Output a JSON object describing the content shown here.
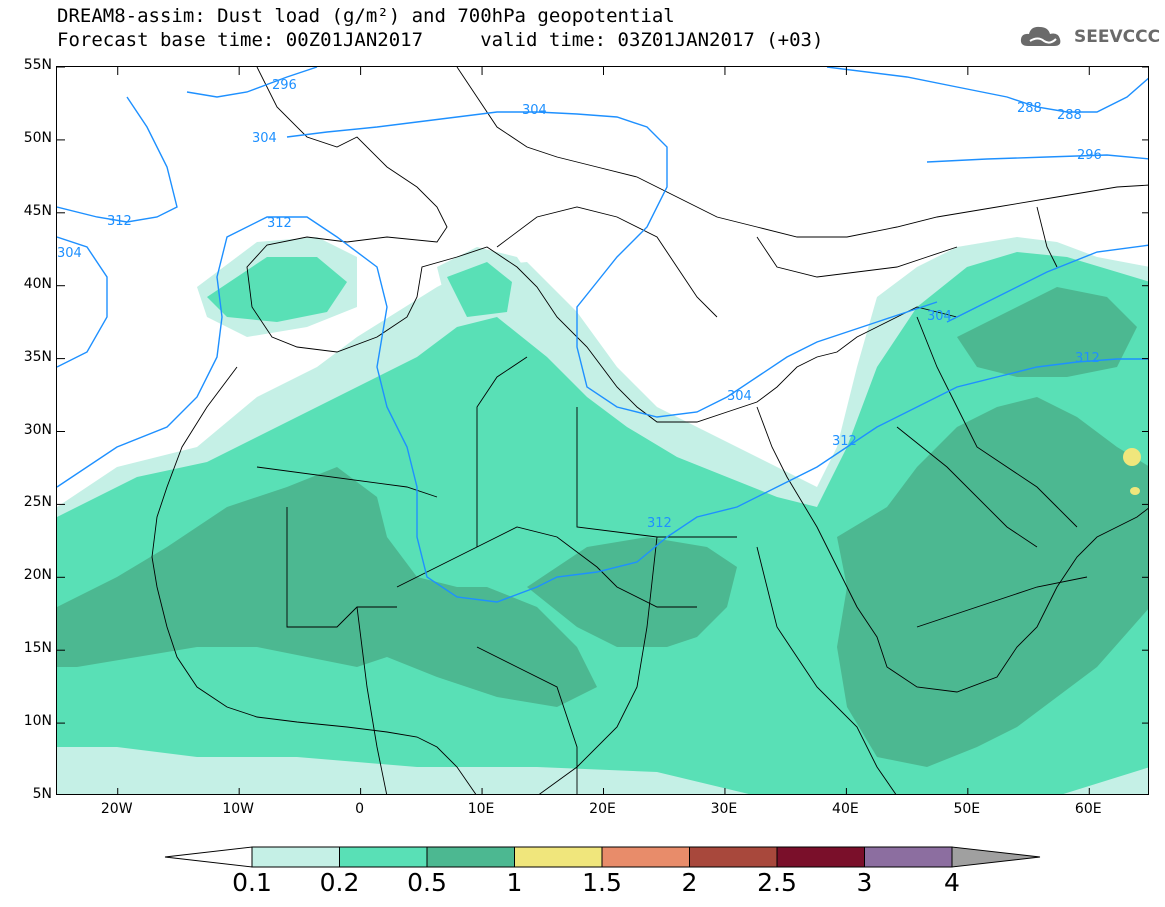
{
  "title": {
    "line1": "DREAM8-assim: Dust load (g/m²) and 700hPa geopotential",
    "line2": "Forecast base time: 00Z01JAN2017     valid time: 03Z01JAN2017 (+03)"
  },
  "logo": {
    "icon": "cloud-logo-icon",
    "text": "SEEVCCC"
  },
  "axes": {
    "lat_labels": [
      "55N",
      "50N",
      "45N",
      "40N",
      "35N",
      "30N",
      "25N",
      "20N",
      "15N",
      "10N",
      "5N"
    ],
    "lon_labels": [
      "20W",
      "10W",
      "0",
      "10E",
      "20E",
      "30E",
      "40E",
      "50E",
      "60E"
    ],
    "lat_range": [
      5,
      55
    ],
    "lon_range": [
      -25,
      65
    ]
  },
  "contours": {
    "color": "#1e90ff",
    "labels": [
      "296",
      "304",
      "312",
      "304",
      "312",
      "304",
      "288",
      "288",
      "296",
      "304",
      "312",
      "312",
      "304",
      "312"
    ]
  },
  "colorbar": {
    "ticks": [
      "0.1",
      "0.2",
      "0.5",
      "1",
      "1.5",
      "2",
      "2.5",
      "3",
      "4"
    ],
    "colors": [
      "#c5f0e6",
      "#59e0b6",
      "#4cb891",
      "#f0e67c",
      "#e88c6a",
      "#a8483c",
      "#7a0f2a",
      "#8c6ea0"
    ],
    "under_color": "#ffffff",
    "over_color": "#a0a0a0"
  }
}
